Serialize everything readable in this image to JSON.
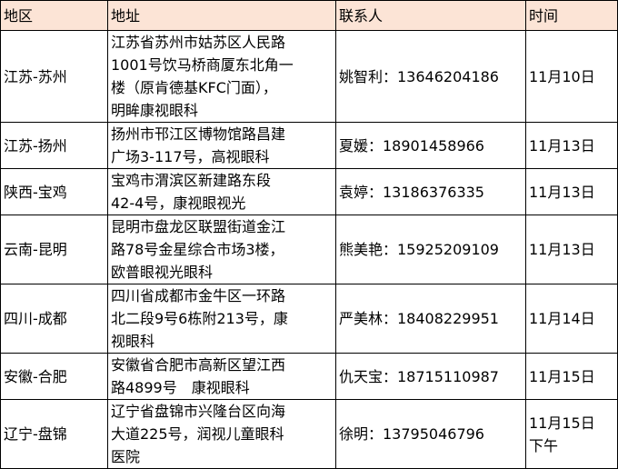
{
  "header": {
    "region": "地区",
    "address": "地址",
    "contact": "联系人",
    "time": "时间"
  },
  "header_bg": "#fce4d6",
  "rows": [
    {
      "region": "江苏-苏州",
      "address": "江苏省苏州市姑苏区人民路\n1001号饮马桥商厦东北角一\n楼（原肯德基KFC门面），\n明眸康视眼科",
      "contact": "姚智利：13646204186",
      "time": "11月10日"
    },
    {
      "region": "江苏-扬州",
      "address": "扬州市邗江区博物馆路昌建\n广场3-117号，高视眼科",
      "contact": "夏媛：18901458966",
      "time": "11月13日"
    },
    {
      "region": "陕西-宝鸡",
      "address": "宝鸡市渭滨区新建路东段\n42-4号，康视眼视光",
      "contact": "袁婷：13186376335",
      "time": "11月13日"
    },
    {
      "region": "云南-昆明",
      "address": "昆明市盘龙区联盟街道金江\n路78号金星综合市场3楼，\n欧普眼视光眼科",
      "contact": "熊美艳：15925209109",
      "time": "11月13日"
    },
    {
      "region": "四川-成都",
      "address": "四川省成都市金牛区一环路\n北二段9号6栋附213号，康\n视眼科",
      "contact": "严美林：18408229951",
      "time": "11月14日"
    },
    {
      "region": "安徽-合肥",
      "address": "安徽省合肥市高新区望江西\n路4899号　康视眼科",
      "contact": "仇天宝：18715110987",
      "time": "11月15日"
    },
    {
      "region": "辽宁-盘锦",
      "address": "辽宁省盘锦市兴隆台区向海\n大道225号，润视儿童眼科\n医院",
      "contact": "徐明：13795046796",
      "time": "11月15日\n下午"
    }
  ]
}
